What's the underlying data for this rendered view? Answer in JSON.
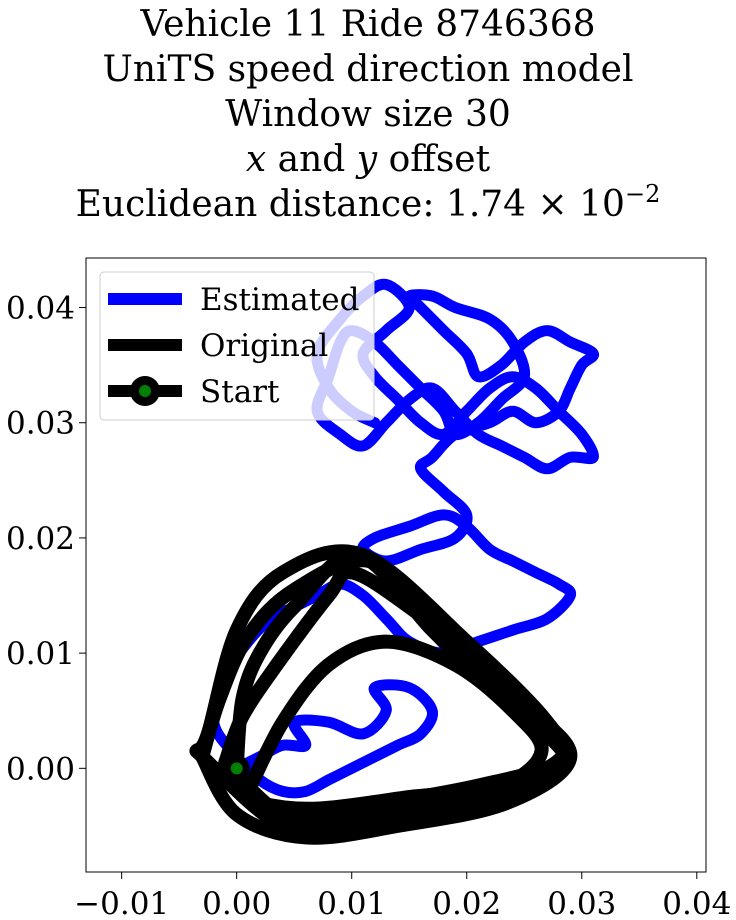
{
  "title": {
    "line1": "Vehicle 11 Ride 8746368",
    "line2": "UniTS speed direction model",
    "line3": "Window size 30",
    "line4_x": "x",
    "line4_and": " and ",
    "line4_y": "y",
    "line4_rest": " offset",
    "line5_prefix": "Euclidean distance: 1.74",
    "line5_times": " × 10",
    "line5_exp": "−2"
  },
  "chart_data": {
    "type": "line",
    "xlim": [
      -0.0131,
      0.0408
    ],
    "ylim": [
      -0.009,
      0.0443
    ],
    "xticks": [
      -0.01,
      0.0,
      0.01,
      0.02,
      0.03,
      0.04
    ],
    "xtick_labels": [
      "−0.01",
      "0.00",
      "0.01",
      "0.02",
      "0.03",
      "0.04"
    ],
    "yticks": [
      0.0,
      0.01,
      0.02,
      0.03,
      0.04
    ],
    "ytick_labels": [
      "0.00",
      "0.01",
      "0.02",
      "0.03",
      "0.04"
    ],
    "grid": false,
    "legend_position": "top-left",
    "legend": [
      {
        "label": "Estimated",
        "color": "#0000ff",
        "style": "line"
      },
      {
        "label": "Original",
        "color": "#000000",
        "style": "line"
      },
      {
        "label": "Start",
        "color": "#000000",
        "marker_fill": "#008000",
        "style": "line-marker"
      }
    ],
    "series": [
      {
        "name": "Original",
        "color": "#000000",
        "loops": [
          [
            [
              0.0,
              0.0
            ],
            [
              0.0005,
              0.006
            ],
            [
              0.002,
              0.01
            ],
            [
              0.005,
              0.014
            ],
            [
              0.0105,
              0.0185
            ],
            [
              0.017,
              0.012
            ],
            [
              0.023,
              0.006
            ],
            [
              0.0285,
              0.0015
            ],
            [
              0.022,
              -0.002
            ],
            [
              0.013,
              -0.004
            ],
            [
              0.005,
              -0.004
            ],
            [
              0.001,
              -0.002
            ],
            [
              0.0,
              0.0
            ]
          ],
          [
            [
              -0.003,
              0.001
            ],
            [
              -0.0015,
              0.006
            ],
            [
              0.001,
              0.0115
            ],
            [
              0.005,
              0.0155
            ],
            [
              0.0115,
              0.018
            ],
            [
              0.0175,
              0.013
            ],
            [
              0.0245,
              0.006
            ],
            [
              0.029,
              0.001
            ],
            [
              0.0235,
              -0.003
            ],
            [
              0.014,
              -0.005
            ],
            [
              0.006,
              -0.006
            ],
            [
              0.0,
              -0.004
            ],
            [
              -0.003,
              0.001
            ]
          ],
          [
            [
              0.001,
              -0.002
            ],
            [
              0.004,
              0.004
            ],
            [
              0.008,
              0.009
            ],
            [
              0.013,
              0.011
            ],
            [
              0.019,
              0.009
            ],
            [
              0.024,
              0.005
            ],
            [
              0.0265,
              0.0015
            ],
            [
              0.023,
              -0.0015
            ],
            [
              0.015,
              -0.0025
            ],
            [
              0.007,
              -0.0035
            ],
            [
              0.002,
              -0.003
            ],
            [
              0.001,
              -0.002
            ]
          ],
          [
            [
              -0.001,
              0.0005
            ],
            [
              0.0005,
              0.0045
            ],
            [
              0.0035,
              0.009
            ],
            [
              0.008,
              0.015
            ],
            [
              0.01,
              0.017
            ],
            [
              0.015,
              0.014
            ],
            [
              0.021,
              0.009
            ],
            [
              0.027,
              0.003
            ],
            [
              0.028,
              0.0005
            ],
            [
              0.021,
              -0.0015
            ],
            [
              0.013,
              -0.003
            ],
            [
              0.005,
              -0.0045
            ],
            [
              -0.001,
              0.0005
            ]
          ],
          [
            [
              -0.0035,
              0.0015
            ],
            [
              -0.0025,
              0.003
            ],
            [
              0.0,
              0.012
            ],
            [
              0.004,
              0.017
            ],
            [
              0.011,
              0.0185
            ],
            [
              0.02,
              0.011
            ],
            [
              0.027,
              0.004
            ],
            [
              0.0285,
              0.0
            ],
            [
              0.02,
              -0.0035
            ],
            [
              0.011,
              -0.005
            ],
            [
              0.004,
              -0.005
            ],
            [
              -0.0035,
              0.0015
            ]
          ]
        ]
      },
      {
        "name": "Estimated",
        "color": "#0000ff",
        "x": [
          0.0,
          0.002,
          0.004,
          0.006,
          0.005,
          0.008,
          0.011,
          0.013,
          0.012,
          0.015,
          0.017,
          0.016,
          0.014,
          0.012,
          0.01,
          0.008,
          0.006,
          0.004,
          0.002,
          0.0,
          -0.002,
          -0.001,
          0.001,
          0.003,
          0.005,
          0.007,
          0.009,
          0.011,
          0.013,
          0.015,
          0.018,
          0.021,
          0.024,
          0.027,
          0.029,
          0.028,
          0.026,
          0.024,
          0.022,
          0.02,
          0.018,
          0.015,
          0.012,
          0.011,
          0.013,
          0.016,
          0.019,
          0.02,
          0.018,
          0.016,
          0.017,
          0.019,
          0.022,
          0.024,
          0.026,
          0.028,
          0.029,
          0.03,
          0.031,
          0.029,
          0.027,
          0.025,
          0.023,
          0.021,
          0.02,
          0.018,
          0.016,
          0.015,
          0.017,
          0.019,
          0.022,
          0.024,
          0.025,
          0.023,
          0.021,
          0.019,
          0.018,
          0.016,
          0.014,
          0.012,
          0.01,
          0.009,
          0.008,
          0.007,
          0.009,
          0.011,
          0.013,
          0.015,
          0.017,
          0.019,
          0.021,
          0.023,
          0.025,
          0.027,
          0.029,
          0.031,
          0.03,
          0.028,
          0.026,
          0.024,
          0.022,
          0.02,
          0.018,
          0.016,
          0.014,
          0.012,
          0.011,
          0.013,
          0.015,
          0.013,
          0.011,
          0.009,
          0.007,
          0.008,
          0.01,
          0.012
        ],
        "y": [
          0.0,
          0.001,
          0.002,
          0.002,
          0.004,
          0.004,
          0.003,
          0.005,
          0.007,
          0.007,
          0.005,
          0.003,
          0.002,
          0.001,
          0.0,
          -0.001,
          -0.002,
          -0.002,
          -0.001,
          0.001,
          0.004,
          0.008,
          0.011,
          0.013,
          0.014,
          0.015,
          0.016,
          0.015,
          0.013,
          0.011,
          0.01,
          0.011,
          0.012,
          0.013,
          0.015,
          0.016,
          0.017,
          0.018,
          0.019,
          0.021,
          0.022,
          0.021,
          0.02,
          0.019,
          0.018,
          0.019,
          0.02,
          0.022,
          0.024,
          0.026,
          0.027,
          0.029,
          0.03,
          0.031,
          0.03,
          0.031,
          0.033,
          0.035,
          0.036,
          0.037,
          0.038,
          0.037,
          0.035,
          0.034,
          0.036,
          0.038,
          0.04,
          0.041,
          0.041,
          0.04,
          0.039,
          0.037,
          0.034,
          0.032,
          0.03,
          0.029,
          0.031,
          0.033,
          0.035,
          0.037,
          0.038,
          0.037,
          0.034,
          0.031,
          0.029,
          0.028,
          0.03,
          0.032,
          0.033,
          0.031,
          0.029,
          0.028,
          0.027,
          0.026,
          0.027,
          0.027,
          0.029,
          0.031,
          0.033,
          0.034,
          0.033,
          0.031,
          0.029,
          0.03,
          0.032,
          0.034,
          0.036,
          0.038,
          0.04,
          0.042,
          0.041,
          0.039,
          0.036,
          0.033,
          0.031,
          0.03
        ]
      },
      {
        "name": "Start",
        "x": [
          0.0
        ],
        "y": [
          0.0
        ],
        "marker_color": "#000000",
        "marker_fill": "#008000"
      }
    ]
  }
}
